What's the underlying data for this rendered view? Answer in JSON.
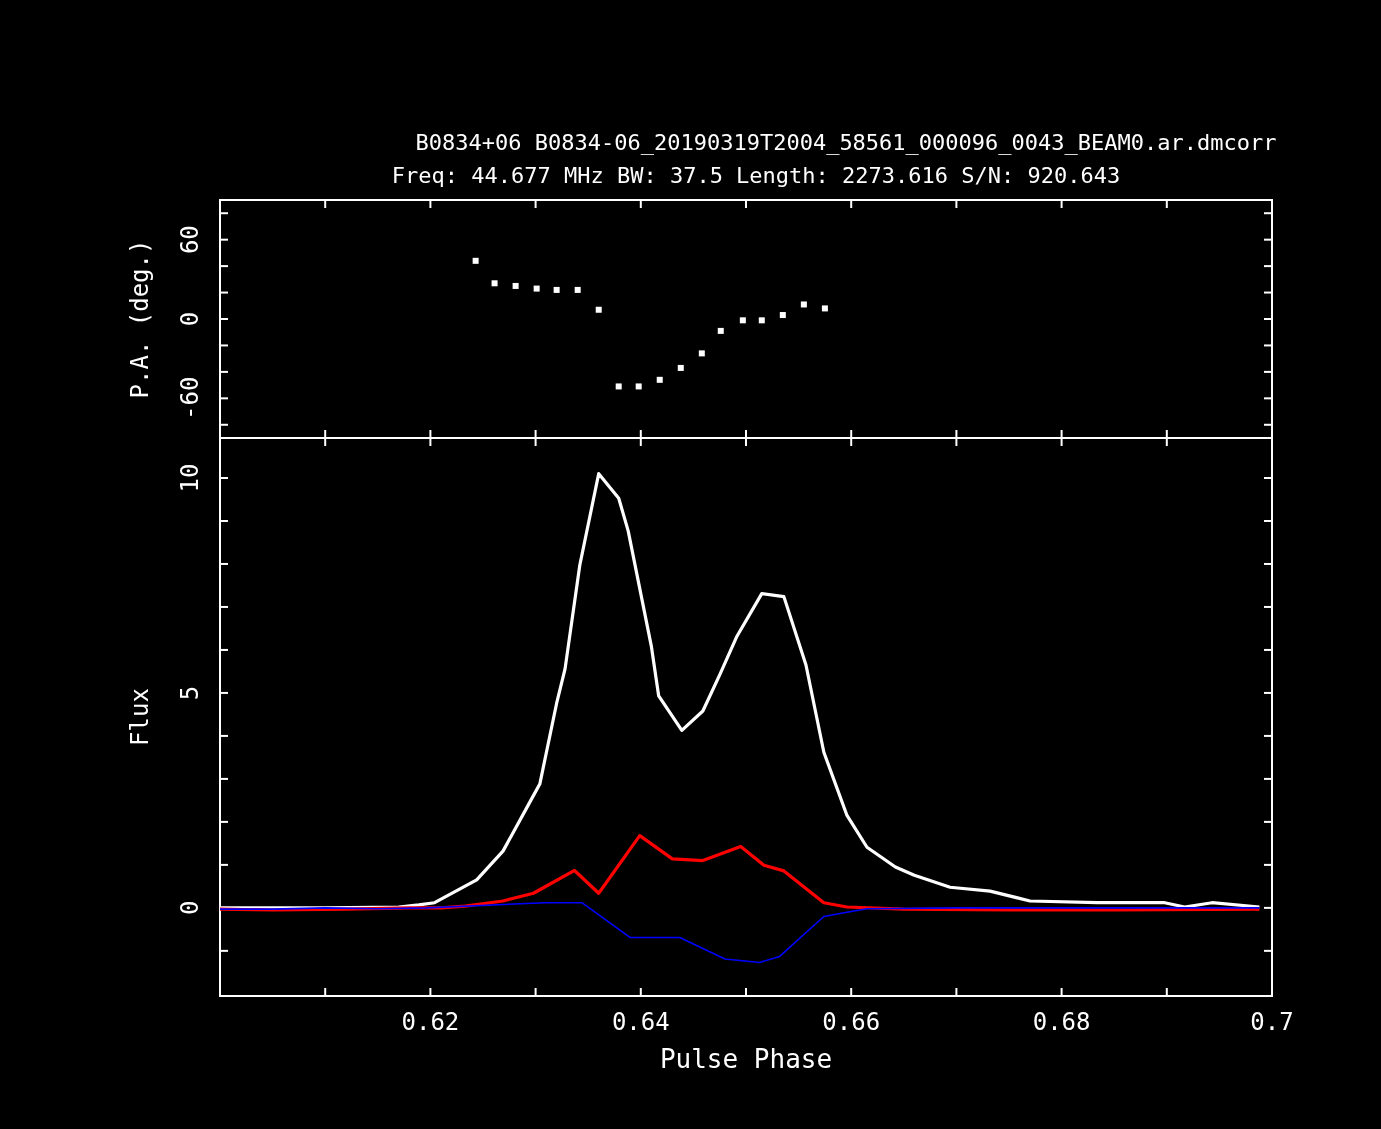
{
  "chart_data": [
    {
      "type": "scatter",
      "title": "B0834+06 B0834-06_20190319T2004_58561_000096_0043_BEAM0.ar.dmcorr",
      "subtitle": "Freq: 44.677 MHz BW: 37.5 Length: 2273.616 S/N: 920.643",
      "ylabel": "P.A. (deg.)",
      "xlim": [
        0.6,
        0.7
      ],
      "ylim": [
        -90,
        90
      ],
      "xticks": [
        {
          "value": 0.61,
          "label": null
        },
        {
          "value": 0.62,
          "label": null
        },
        {
          "value": 0.63,
          "label": null
        },
        {
          "value": 0.64,
          "label": null
        },
        {
          "value": 0.65,
          "label": null
        },
        {
          "value": 0.66,
          "label": null
        },
        {
          "value": 0.67,
          "label": null
        },
        {
          "value": 0.68,
          "label": null
        },
        {
          "value": 0.69,
          "label": null
        }
      ],
      "yticks": [
        {
          "value": -80,
          "label": null
        },
        -60,
        {
          "value": -40,
          "label": null
        },
        {
          "value": -20,
          "label": null
        },
        0,
        {
          "value": 20,
          "label": null
        },
        {
          "value": 40,
          "label": null
        },
        60,
        {
          "value": 80,
          "label": null
        }
      ],
      "tick_labels": "y",
      "marker": "square",
      "series": [
        {
          "color": "#ffffff",
          "x": [
            0.6243,
            0.6261,
            0.6281,
            0.6301,
            0.632,
            0.634,
            0.636,
            0.6379,
            0.6398,
            0.6418,
            0.6438,
            0.6458,
            0.6476,
            0.6497,
            0.6515,
            0.6535,
            0.6555,
            0.6575
          ],
          "values": [
            44,
            27,
            25,
            23,
            22,
            22,
            7,
            -51,
            -51,
            -46,
            -37,
            -26,
            -9,
            -1,
            -1,
            3,
            11,
            8
          ]
        }
      ]
    },
    {
      "type": "line",
      "xlabel": "Pulse Phase",
      "ylabel": "Flux",
      "xlim": [
        0.6,
        0.7
      ],
      "ylim": [
        -2.05,
        10.93
      ],
      "xticks": [
        {
          "value": 0.61,
          "label": null
        },
        0.62,
        {
          "value": 0.63,
          "label": null
        },
        0.64,
        {
          "value": 0.65,
          "label": null
        },
        0.66,
        {
          "value": 0.67,
          "label": null
        },
        0.68,
        {
          "value": 0.69,
          "label": null
        },
        0.7
      ],
      "yticks": [
        {
          "value": -1,
          "label": null
        },
        0,
        {
          "value": 1,
          "label": null
        },
        {
          "value": 2,
          "label": null
        },
        {
          "value": 3,
          "label": null
        },
        {
          "value": 4,
          "label": null
        },
        5,
        {
          "value": 6,
          "label": null
        },
        {
          "value": 7,
          "label": null
        },
        {
          "value": 8,
          "label": null
        },
        {
          "value": 9,
          "label": null
        },
        10
      ],
      "series": [
        {
          "color": "#ffffff",
          "x": [
            0.6,
            0.61,
            0.617,
            0.6189,
            0.6204,
            0.6244,
            0.6269,
            0.6297,
            0.6304,
            0.632,
            0.6328,
            0.6342,
            0.636,
            0.6379,
            0.6388,
            0.641,
            0.6417,
            0.6439,
            0.6459,
            0.6475,
            0.6491,
            0.6515,
            0.6536,
            0.6557,
            0.6574,
            0.6596,
            0.6615,
            0.6642,
            0.666,
            0.6694,
            0.6732,
            0.677,
            0.6834,
            0.6898,
            0.6917,
            0.6943,
            0.6988
          ],
          "values": [
            0,
            0,
            0.02,
            0.07,
            0.12,
            0.65,
            1.32,
            2.57,
            2.88,
            4.76,
            5.56,
            7.97,
            10.1,
            9.53,
            8.77,
            6.09,
            4.93,
            4.13,
            4.58,
            5.42,
            6.3,
            7.31,
            7.24,
            5.65,
            3.62,
            2.15,
            1.41,
            0.95,
            0.76,
            0.48,
            0.39,
            0.16,
            0.12,
            0.12,
            0.02,
            0.12,
            0.02
          ]
        },
        {
          "color": "#ff0000",
          "x": [
            0.6,
            0.605,
            0.612,
            0.618,
            0.621,
            0.6233,
            0.6269,
            0.6298,
            0.6337,
            0.636,
            0.6399,
            0.643,
            0.6459,
            0.6495,
            0.6517,
            0.6536,
            0.6574,
            0.6596,
            0.665,
            0.675,
            0.685,
            0.6988
          ],
          "values": [
            -0.03,
            -0.05,
            -0.03,
            0,
            0,
            0.04,
            0.16,
            0.34,
            0.87,
            0.34,
            1.68,
            1.14,
            1.1,
            1.43,
            0.99,
            0.86,
            0.12,
            0.02,
            -0.03,
            -0.05,
            -0.05,
            -0.03
          ]
        },
        {
          "color": "#0000ff",
          "x": [
            0.6,
            0.605,
            0.61,
            0.615,
            0.6196,
            0.6309,
            0.6344,
            0.639,
            0.6437,
            0.648,
            0.6513,
            0.6532,
            0.6574,
            0.6596,
            0.6615,
            0.67,
            0.68,
            0.69,
            0.6988
          ],
          "values": [
            -0.03,
            -0.03,
            0,
            -0.02,
            0,
            0.12,
            0.12,
            -0.69,
            -0.69,
            -1.19,
            -1.27,
            -1.13,
            -0.2,
            -0.1,
            -0.02,
            0,
            0,
            0,
            0
          ]
        }
      ]
    }
  ]
}
